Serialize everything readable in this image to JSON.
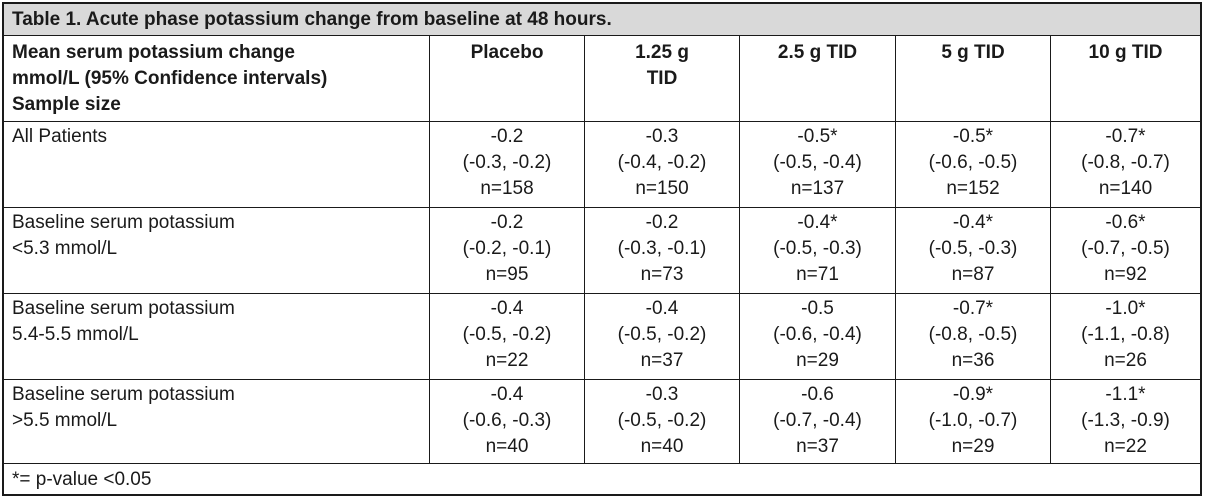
{
  "title": "Table 1. Acute phase potassium change from baseline at 48 hours.",
  "header": {
    "row_label_lines": [
      "Mean serum potassium change",
      "mmol/L (95% Confidence intervals)",
      "Sample size"
    ],
    "columns": [
      [
        "Placebo"
      ],
      [
        "1.25 g",
        "TID"
      ],
      [
        "2.5 g TID"
      ],
      [
        "5 g TID"
      ],
      [
        "10 g TID"
      ]
    ]
  },
  "rows": [
    {
      "label_lines": [
        "All Patients"
      ],
      "cells": [
        [
          "-0.2",
          "(-0.3, -0.2)",
          "n=158"
        ],
        [
          "-0.3",
          "(-0.4, -0.2)",
          "n=150"
        ],
        [
          "-0.5*",
          "(-0.5, -0.4)",
          "n=137"
        ],
        [
          "-0.5*",
          "(-0.6, -0.5)",
          "n=152"
        ],
        [
          "-0.7*",
          "(-0.8, -0.7)",
          "n=140"
        ]
      ]
    },
    {
      "label_lines": [
        "Baseline serum potassium",
        "<5.3 mmol/L"
      ],
      "cells": [
        [
          "-0.2",
          "(-0.2, -0.1)",
          "n=95"
        ],
        [
          "-0.2",
          "(-0.3, -0.1)",
          "n=73"
        ],
        [
          "-0.4*",
          "(-0.5, -0.3)",
          "n=71"
        ],
        [
          "-0.4*",
          "(-0.5, -0.3)",
          "n=87"
        ],
        [
          "-0.6*",
          "(-0.7, -0.5)",
          "n=92"
        ]
      ]
    },
    {
      "label_lines": [
        "Baseline serum potassium",
        "5.4-5.5 mmol/L"
      ],
      "cells": [
        [
          "-0.4",
          "(-0.5, -0.2)",
          "n=22"
        ],
        [
          "-0.4",
          "(-0.5, -0.2)",
          "n=37"
        ],
        [
          "-0.5",
          "(-0.6, -0.4)",
          "n=29"
        ],
        [
          "-0.7*",
          "(-0.8, -0.5)",
          "n=36"
        ],
        [
          "-1.0*",
          "(-1.1, -0.8)",
          "n=26"
        ]
      ]
    },
    {
      "label_lines": [
        "Baseline serum potassium",
        ">5.5 mmol/L"
      ],
      "cells": [
        [
          "-0.4",
          "(-0.6, -0.3)",
          "n=40"
        ],
        [
          "-0.3",
          "(-0.5, -0.2)",
          "n=40"
        ],
        [
          "-0.6",
          "(-0.7, -0.4)",
          "n=37"
        ],
        [
          "-0.9*",
          "(-1.0, -0.7)",
          "n=29"
        ],
        [
          "-1.1*",
          "(-1.3, -0.9)",
          "n=22"
        ]
      ]
    }
  ],
  "footnote": "*= p-value <0.05"
}
